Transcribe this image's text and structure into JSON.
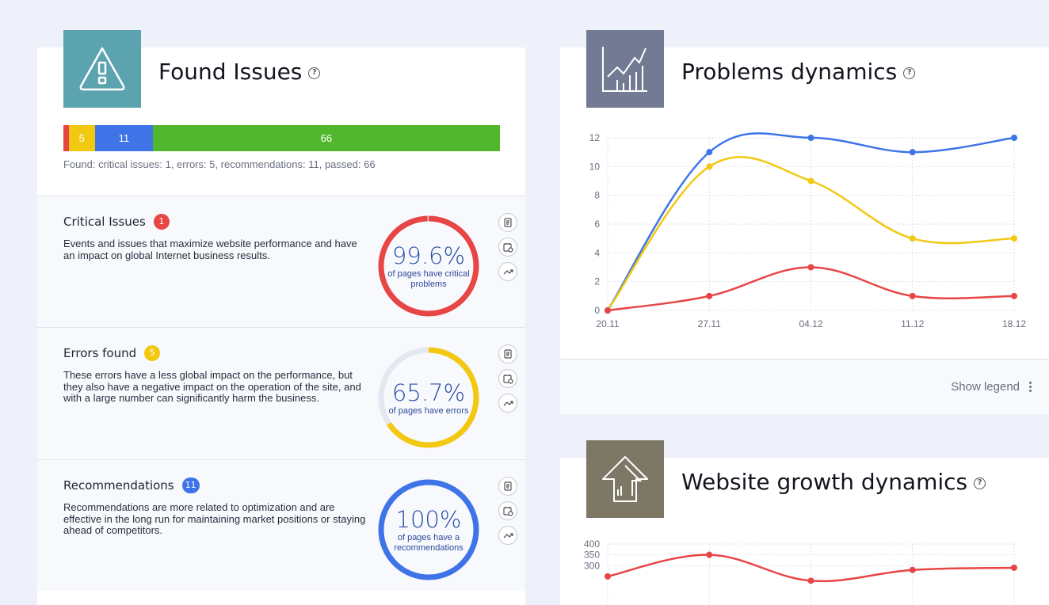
{
  "found_issues": {
    "title": "Found Issues",
    "help": "?",
    "bar": [
      {
        "label": "",
        "value": 1,
        "color": "#e84545"
      },
      {
        "label": "5",
        "value": 5,
        "color": "#f2c811"
      },
      {
        "label": "11",
        "value": 11,
        "color": "#3e74e8"
      },
      {
        "label": "66",
        "value": 66,
        "color": "#53b72e"
      }
    ],
    "summary": "Found: critical issues: 1, errors: 5, recommendations: 11, passed: 66"
  },
  "sections": [
    {
      "title": "Critical Issues",
      "count": "1",
      "color": "#e84545",
      "description": "Events and issues that maximize website performance and have an impact on global Internet business results.",
      "percent": "99.6%",
      "fraction": 0.996,
      "caption": "of pages have critical problems"
    },
    {
      "title": "Errors found",
      "count": "5",
      "color": "#f2c811",
      "description": "These errors have a less global impact on the performance, but they also have a negative impact on the operation of the site, and with a large number can significantly harm the business.",
      "percent": "65.7%",
      "fraction": 0.657,
      "caption": "of pages have errors"
    },
    {
      "title": "Recommendations",
      "count": "11",
      "color": "#3e74e8",
      "description": "Recommendations are more related to optimization and are effective in the long run for maintaining market positions or staying ahead of competitors.",
      "percent": "100%",
      "fraction": 1.0,
      "caption": "of pages have a recommendations"
    }
  ],
  "side_icons": [
    "report-icon",
    "calendar-icon",
    "trend-icon"
  ],
  "problems_dynamics": {
    "title": "Problems dynamics",
    "help": "?",
    "show_legend": "Show legend"
  },
  "website_growth": {
    "title": "Website growth dynamics",
    "help": "?"
  },
  "chart_data": [
    {
      "type": "line",
      "categories": [
        "20.11",
        "27.11",
        "04.12",
        "11.12",
        "18.12"
      ],
      "ylim": [
        0,
        12
      ],
      "yticks": [
        0,
        2,
        4,
        6,
        8,
        10,
        12
      ],
      "grid": true,
      "series": [
        {
          "color": "#3e74e8",
          "values": [
            0,
            11,
            12,
            11,
            12
          ]
        },
        {
          "color": "#f2c811",
          "values": [
            0,
            10,
            9,
            5,
            5
          ]
        },
        {
          "color": "#e84545",
          "values": [
            0,
            1,
            3,
            1,
            1
          ]
        }
      ]
    },
    {
      "type": "line",
      "ylim": [
        0,
        400
      ],
      "yticks": [
        300,
        350,
        400
      ],
      "grid": true,
      "series": [
        {
          "color": "#e84545",
          "values": [
            250,
            350,
            230,
            280,
            290
          ]
        }
      ]
    }
  ]
}
